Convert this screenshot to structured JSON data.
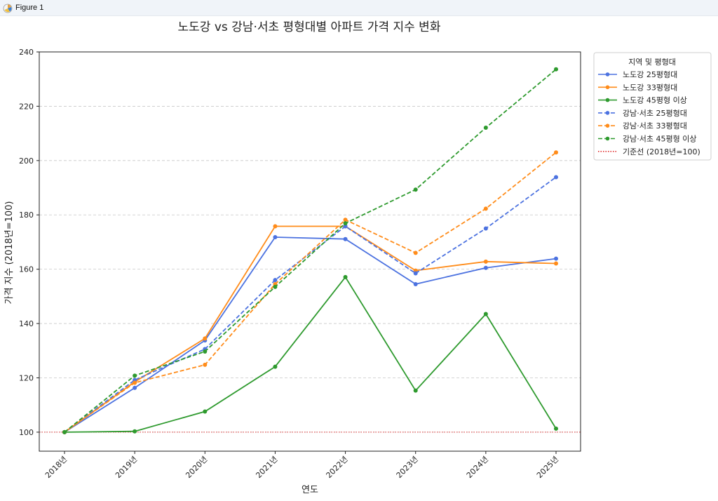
{
  "window": {
    "title": "Figure 1",
    "icon": "matplotlib-figure-icon"
  },
  "chart_data": {
    "type": "line",
    "title": "노도강 vs 강남·서초 평형대별 아파트 가격 지수 변화",
    "xlabel": "연도",
    "ylabel": "가격 지수 (2018년=100)",
    "categories": [
      "2018년",
      "2019년",
      "2020년",
      "2021년",
      "2022년",
      "2023년",
      "2024년",
      "2025년"
    ],
    "ylim": [
      93,
      240
    ],
    "yticks": [
      100,
      120,
      140,
      160,
      180,
      200,
      220,
      240
    ],
    "grid": "horizontal dashed",
    "legend_title": "지역 및 평형대",
    "legend_position": "outside right, top",
    "series": [
      {
        "name": "노도강 25평형대",
        "color": "#4c72e0",
        "style": "solid",
        "values": [
          100,
          116.3,
          133.8,
          171.8,
          171.1,
          154.5,
          160.5,
          163.9
        ]
      },
      {
        "name": "노도강 33평형대",
        "color": "#ff8c1a",
        "style": "solid",
        "values": [
          100,
          118.5,
          134.5,
          175.8,
          175.8,
          159.5,
          162.8,
          162.1
        ]
      },
      {
        "name": "노도강 45평형 이상",
        "color": "#2e9a2e",
        "style": "solid",
        "values": [
          100,
          100.3,
          107.6,
          124.1,
          157.1,
          115.3,
          143.5,
          101.3
        ]
      },
      {
        "name": "강남·서초 25평형대",
        "color": "#4c72e0",
        "style": "dashed",
        "values": [
          100,
          119.2,
          130.6,
          156.0,
          175.8,
          158.5,
          175.0,
          193.9
        ]
      },
      {
        "name": "강남·서초 33평형대",
        "color": "#ff8c1a",
        "style": "dashed",
        "values": [
          100,
          118.2,
          124.8,
          154.5,
          178.2,
          166.0,
          182.3,
          203.0
        ]
      },
      {
        "name": "강남·서초 45평형 이상",
        "color": "#2e9a2e",
        "style": "dashed",
        "values": [
          100,
          120.8,
          129.7,
          153.5,
          176.9,
          189.3,
          212.1,
          233.6
        ]
      }
    ],
    "reference_line": {
      "name": "기준선 (2018년=100)",
      "value": 100,
      "color": "#e03030",
      "style": "dotted"
    }
  }
}
